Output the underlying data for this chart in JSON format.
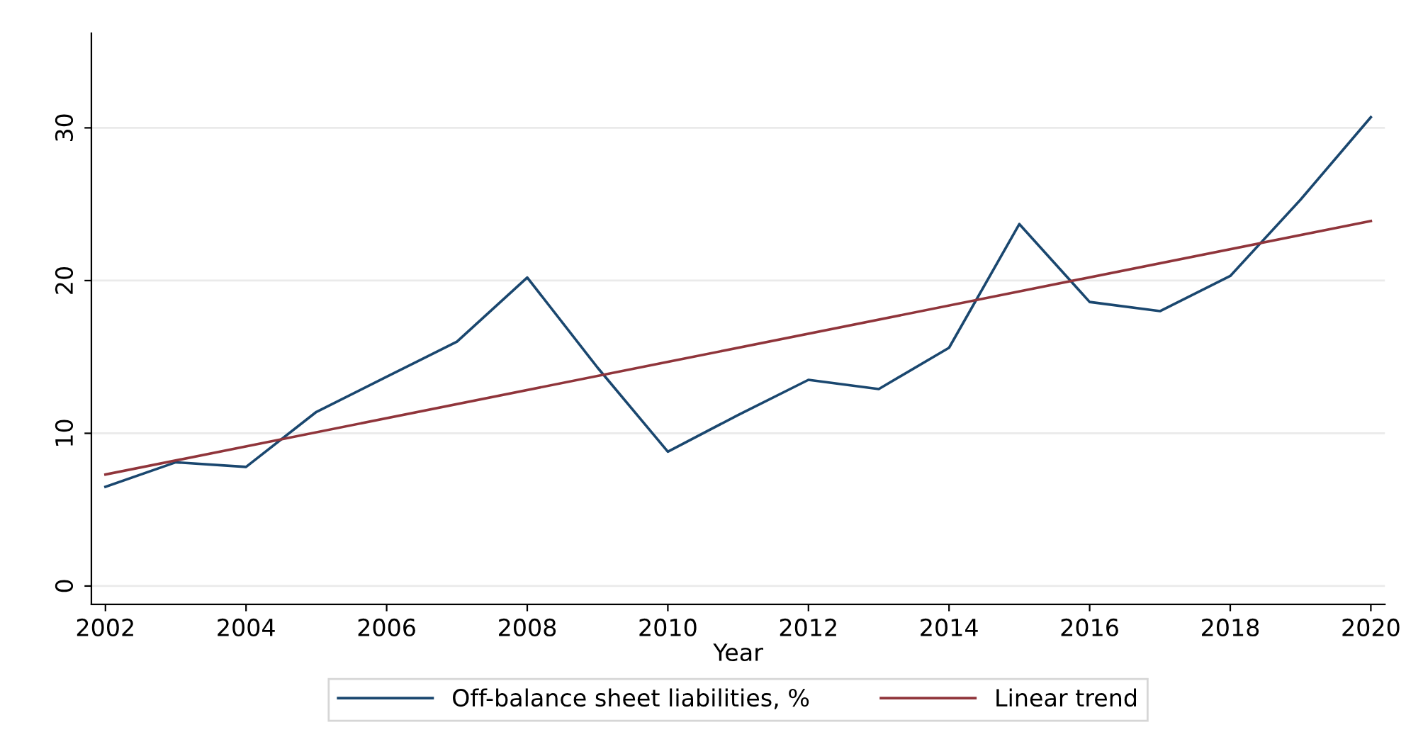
{
  "chart_data": {
    "type": "line",
    "xlabel": "Year",
    "x": [
      2002,
      2003,
      2004,
      2005,
      2006,
      2007,
      2008,
      2009,
      2010,
      2011,
      2012,
      2013,
      2014,
      2015,
      2016,
      2017,
      2018,
      2019,
      2020
    ],
    "series": [
      {
        "name": "Off-balance sheet liabilities, %",
        "color": "#1a476f",
        "values": [
          6.5,
          8.1,
          7.8,
          11.4,
          13.7,
          16.0,
          20.2,
          14.3,
          8.8,
          11.2,
          13.5,
          12.9,
          15.6,
          23.7,
          18.6,
          18.0,
          20.3,
          25.3,
          30.7
        ]
      },
      {
        "name": "Linear trend",
        "color": "#90353b",
        "x": [
          2002,
          2020
        ],
        "values": [
          7.3,
          23.9
        ]
      }
    ],
    "xlim": [
      2001.8,
      2020.2
    ],
    "ylim": [
      -1.2,
      36.2
    ],
    "xticks": [
      2002,
      2004,
      2006,
      2008,
      2010,
      2012,
      2014,
      2016,
      2018,
      2020
    ],
    "yticks": [
      0,
      10,
      20,
      30
    ],
    "grid": "y",
    "legend": "bottom",
    "marker": "none",
    "line_style": "solid"
  }
}
